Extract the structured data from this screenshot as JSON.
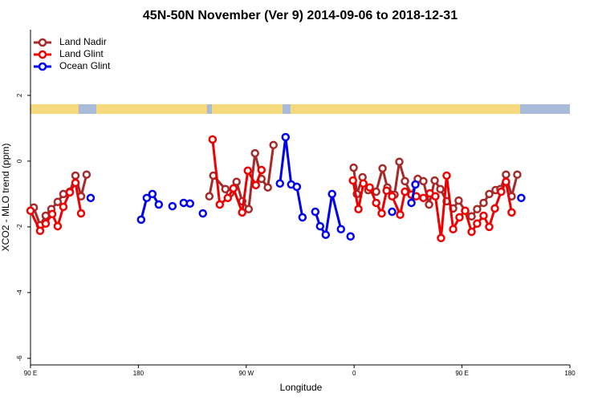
{
  "chart_data": {
    "type": "line",
    "title": "45N-50N November (Ver 9)   2014-09-06 to 2018-12-31",
    "x_label": "Longitude",
    "y_label": "XCO2 - MLO trend (ppm)",
    "xlim": [
      90,
      540
    ],
    "ylim": [
      -6.2,
      4
    ],
    "xticks": [
      {
        "value": 90,
        "label": "90 E"
      },
      180,
      {
        "value": 270,
        "label": "90 W"
      },
      {
        "value": 360,
        "label": "0"
      },
      {
        "value": 450,
        "label": "90 E"
      },
      {
        "value": 540,
        "label": "180"
      }
    ],
    "yticks": [
      -6,
      -4,
      -2,
      0,
      2
    ],
    "legend": "top-left",
    "series": [
      {
        "name": "Land Nadir",
        "color": "#a52a2a",
        "x": [
          92.7,
          98,
          102.7,
          107.4,
          112.7,
          117.4,
          122.8,
          127.5,
          132.2,
          136.8,
          null,
          239.2,
          242.5,
          252.6,
          256.6,
          261.9,
          266.6,
          272,
          277.3,
          282.7,
          288,
          292.7,
          null,
          359.6,
          362.3,
          367,
          371.7,
          378.4,
          383.7,
          387.7,
          393.7,
          397.7,
          402.4,
          407.8,
          413.1,
          417.8,
          422.5,
          427.2,
          431.9,
          437.2,
          442.6,
          447.2,
          452.6,
          458,
          462.6,
          468,
          472.7,
          478,
          482,
          486.7,
          491.4,
          496.1
        ],
        "values": [
          -1.41,
          -1.95,
          -1.66,
          -1.46,
          -1.24,
          -1.0,
          -0.93,
          -0.44,
          -1.07,
          -0.41,
          null,
          -1.07,
          -0.44,
          -0.85,
          -0.98,
          -0.63,
          -1.22,
          -1.46,
          0.24,
          -0.54,
          -0.8,
          0.49,
          null,
          -0.2,
          -1.0,
          -0.49,
          -0.88,
          -0.93,
          -0.22,
          -0.8,
          -1.02,
          -0.02,
          -0.61,
          -1.02,
          -0.54,
          -0.61,
          -1.32,
          -0.59,
          -0.85,
          -1.22,
          -1.44,
          -1.2,
          -1.51,
          -1.68,
          -1.46,
          -1.27,
          -1.0,
          -0.88,
          -0.85,
          -0.41,
          -1.07,
          -0.41
        ]
      },
      {
        "name": "Land Glint",
        "color": "#ee0000",
        "x": [
          90,
          98,
          102.7,
          108.1,
          112.7,
          117.4,
          122.8,
          127.5,
          132.2,
          null,
          241.9,
          247.9,
          254.6,
          259.3,
          266.6,
          271.3,
          278,
          282.7,
          null,
          359,
          363.6,
          367.7,
          373,
          378.4,
          383,
          387.1,
          391.7,
          398.4,
          402.4,
          407.8,
          411.8,
          417.8,
          423.2,
          427.8,
          432.5,
          437.2,
          442.6,
          447.9,
          452.6,
          458,
          462.6,
          468,
          472.7,
          477.4,
          482.7,
          486.7,
          491.4
        ],
        "values": [
          -1.51,
          -2.12,
          -1.9,
          -1.61,
          -1.98,
          -1.39,
          -0.95,
          -0.66,
          -1.59,
          null,
          0.66,
          -1.32,
          -1.12,
          -0.83,
          -1.56,
          -0.29,
          -0.73,
          -0.27,
          null,
          -0.59,
          -1.46,
          -0.68,
          -0.8,
          -1.27,
          -1.59,
          -0.9,
          -1.07,
          -1.63,
          -0.93,
          -1.02,
          -1.07,
          -1.12,
          -0.98,
          -1.07,
          -2.34,
          -0.44,
          -2.07,
          -1.71,
          -1.51,
          -2.15,
          -1.9,
          -1.66,
          -2.0,
          -1.44,
          -0.93,
          -0.63,
          -1.56
        ]
      },
      {
        "name": "Ocean Glint",
        "color": "#0000ee",
        "x": [
          140.2,
          null,
          182.3,
          187,
          191.7,
          197,
          null,
          208.4,
          null,
          217.8,
          223.1,
          null,
          233.8,
          null,
          298.1,
          302.8,
          307.5,
          312.2,
          316.9,
          null,
          327.6,
          331.6,
          336.3,
          341.6,
          349,
          null,
          357,
          null,
          391.7,
          null,
          407.8,
          411.1,
          null,
          499.4
        ],
        "values": [
          -1.12,
          null,
          -1.78,
          -1.12,
          -1.0,
          -1.32,
          null,
          -1.37,
          null,
          -1.27,
          -1.29,
          null,
          -1.59,
          null,
          -0.68,
          0.73,
          -0.71,
          -0.78,
          -1.71,
          null,
          -1.54,
          -1.98,
          -2.24,
          -1.0,
          -2.07,
          null,
          -2.29,
          null,
          -1.54,
          null,
          -1.27,
          -0.71,
          null,
          -1.12
        ]
      }
    ]
  }
}
